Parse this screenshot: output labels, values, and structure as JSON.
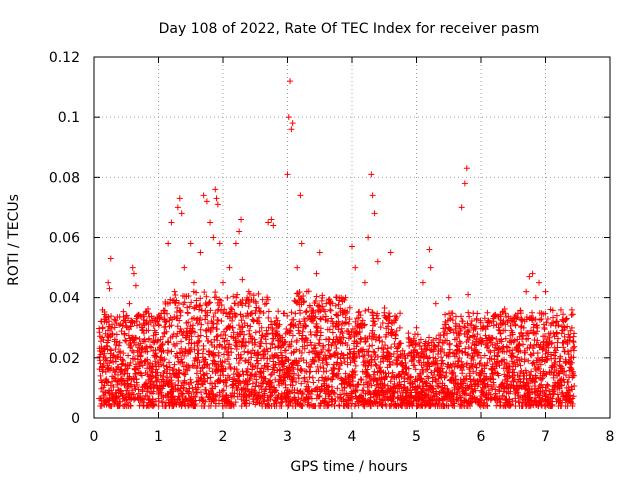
{
  "chart_data": {
    "type": "scatter",
    "title": "Day 108 of 2022, Rate Of TEC Index for receiver pasm",
    "xlabel": "GPS time / hours",
    "ylabel": "ROTI / TECUs",
    "xlim": [
      0,
      8
    ],
    "ylim": [
      0,
      0.12
    ],
    "xticks": [
      0,
      1,
      2,
      3,
      4,
      5,
      6,
      7,
      8
    ],
    "xtick_labels": [
      "0",
      "1",
      "2",
      "3",
      "4",
      "5",
      "6",
      "7",
      "8"
    ],
    "yticks": [
      0,
      0.02,
      0.04,
      0.06,
      0.08,
      0.1,
      0.12
    ],
    "ytick_labels": [
      "0",
      "0.02",
      "0.04",
      "0.06",
      "0.08",
      "0.1",
      "0.12"
    ],
    "grid": true,
    "marker": "+",
    "color": "#ff0000",
    "series": [
      {
        "name": "ROTI",
        "points": [
          [
            0.1,
            0.014
          ],
          [
            0.12,
            0.022
          ],
          [
            0.15,
            0.018
          ],
          [
            0.18,
            0.028
          ],
          [
            0.2,
            0.012
          ],
          [
            0.22,
            0.045
          ],
          [
            0.24,
            0.043
          ],
          [
            0.26,
            0.053
          ],
          [
            0.28,
            0.031
          ],
          [
            0.3,
            0.016
          ],
          [
            0.33,
            0.02
          ],
          [
            0.36,
            0.011
          ],
          [
            0.4,
            0.025
          ],
          [
            0.45,
            0.019
          ],
          [
            0.5,
            0.034
          ],
          [
            0.55,
            0.038
          ],
          [
            0.6,
            0.05
          ],
          [
            0.62,
            0.048
          ],
          [
            0.65,
            0.044
          ],
          [
            0.7,
            0.022
          ],
          [
            0.75,
            0.03
          ],
          [
            0.8,
            0.015
          ],
          [
            0.85,
            0.026
          ],
          [
            0.9,
            0.012
          ],
          [
            0.95,
            0.018
          ],
          [
            1.0,
            0.008
          ],
          [
            1.05,
            0.02
          ],
          [
            1.1,
            0.032
          ],
          [
            1.15,
            0.058
          ],
          [
            1.2,
            0.065
          ],
          [
            1.25,
            0.042
          ],
          [
            1.3,
            0.07
          ],
          [
            1.33,
            0.073
          ],
          [
            1.36,
            0.068
          ],
          [
            1.4,
            0.05
          ],
          [
            1.45,
            0.028
          ],
          [
            1.5,
            0.058
          ],
          [
            1.55,
            0.045
          ],
          [
            1.6,
            0.033
          ],
          [
            1.65,
            0.055
          ],
          [
            1.7,
            0.074
          ],
          [
            1.75,
            0.072
          ],
          [
            1.8,
            0.065
          ],
          [
            1.85,
            0.06
          ],
          [
            1.88,
            0.076
          ],
          [
            1.9,
            0.073
          ],
          [
            1.92,
            0.071
          ],
          [
            1.95,
            0.058
          ],
          [
            2.0,
            0.045
          ],
          [
            2.05,
            0.035
          ],
          [
            2.1,
            0.05
          ],
          [
            2.15,
            0.03
          ],
          [
            2.2,
            0.058
          ],
          [
            2.25,
            0.062
          ],
          [
            2.28,
            0.066
          ],
          [
            2.3,
            0.046
          ],
          [
            2.35,
            0.038
          ],
          [
            2.4,
            0.042
          ],
          [
            2.5,
            0.025
          ],
          [
            2.6,
            0.03
          ],
          [
            2.7,
            0.065
          ],
          [
            2.75,
            0.066
          ],
          [
            2.78,
            0.064
          ],
          [
            2.85,
            0.02
          ],
          [
            2.95,
            0.025
          ],
          [
            3.0,
            0.081
          ],
          [
            3.02,
            0.1
          ],
          [
            3.04,
            0.112
          ],
          [
            3.06,
            0.096
          ],
          [
            3.08,
            0.098
          ],
          [
            3.15,
            0.05
          ],
          [
            3.2,
            0.074
          ],
          [
            3.22,
            0.058
          ],
          [
            3.25,
            0.03
          ],
          [
            3.3,
            0.042
          ],
          [
            3.4,
            0.035
          ],
          [
            3.45,
            0.048
          ],
          [
            3.5,
            0.055
          ],
          [
            3.6,
            0.038
          ],
          [
            3.7,
            0.032
          ],
          [
            3.8,
            0.026
          ],
          [
            3.9,
            0.04
          ],
          [
            4.0,
            0.057
          ],
          [
            4.05,
            0.05
          ],
          [
            4.1,
            0.022
          ],
          [
            4.2,
            0.045
          ],
          [
            4.25,
            0.06
          ],
          [
            4.3,
            0.081
          ],
          [
            4.32,
            0.074
          ],
          [
            4.35,
            0.068
          ],
          [
            4.4,
            0.052
          ],
          [
            4.5,
            0.035
          ],
          [
            4.6,
            0.055
          ],
          [
            4.7,
            0.02
          ],
          [
            4.8,
            0.01
          ],
          [
            4.9,
            0.005
          ],
          [
            5.0,
            0.03
          ],
          [
            5.1,
            0.045
          ],
          [
            5.2,
            0.056
          ],
          [
            5.22,
            0.05
          ],
          [
            5.3,
            0.038
          ],
          [
            5.4,
            0.025
          ],
          [
            5.5,
            0.04
          ],
          [
            5.6,
            0.018
          ],
          [
            5.7,
            0.07
          ],
          [
            5.75,
            0.078
          ],
          [
            5.78,
            0.083
          ],
          [
            5.8,
            0.041
          ],
          [
            5.9,
            0.03
          ],
          [
            6.0,
            0.02
          ],
          [
            6.1,
            0.035
          ],
          [
            6.2,
            0.015
          ],
          [
            6.3,
            0.028
          ],
          [
            6.4,
            0.022
          ],
          [
            6.5,
            0.018
          ],
          [
            6.6,
            0.024
          ],
          [
            6.7,
            0.042
          ],
          [
            6.75,
            0.047
          ],
          [
            6.8,
            0.048
          ],
          [
            6.85,
            0.04
          ],
          [
            6.9,
            0.045
          ],
          [
            7.0,
            0.042
          ],
          [
            7.1,
            0.025
          ],
          [
            7.2,
            0.015
          ],
          [
            7.3,
            0.03
          ],
          [
            7.35,
            0.012
          ],
          [
            7.4,
            0.02
          ]
        ],
        "dense_band": {
          "description": "dense cloud of points",
          "x_range": [
            0.08,
            7.45
          ],
          "y_min": 0.004,
          "y_typical_upper": 0.035
        }
      }
    ]
  }
}
